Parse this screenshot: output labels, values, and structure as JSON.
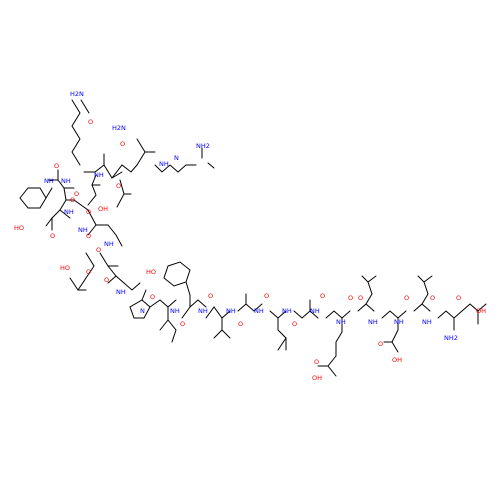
{
  "colors": {
    "background": "#ffffff",
    "bond": "#000000",
    "oxygen": "#ff0000",
    "nitrogen": "#0000ff"
  },
  "atom_labels": {
    "h2n_gln": "H2N",
    "o_gln_amide": "O",
    "h2n_c_term": "H2N",
    "o_c_term": "O",
    "nh_arg_1": "NH",
    "n_arg_2": "N",
    "nh2_arg": "NH2",
    "nh_leu": "NH",
    "nh_gln": "NH",
    "nh_phe": "NH",
    "o_phe": "O",
    "o_gln": "O",
    "o_leu": "O",
    "nh_asp1": "NH",
    "ho_asp1": "HO",
    "o_asp1": "O",
    "o_asp1_acid": "O",
    "nh_asp2": "NH",
    "o_asp2_acid": "O",
    "oh_asp2": "OH",
    "o_asp2": "O",
    "nh_asp3": "NH",
    "ho_asp3": "HO",
    "o_asp3_acid": "O",
    "o_asp3": "O",
    "nh_ala1": "NH",
    "o_ala1": "O",
    "ho_tyr": "HO",
    "n_pro": "N",
    "o_pro": "O",
    "nh_ile": "NH",
    "o_ile": "O",
    "nh_tyr": "NH",
    "o_tyr": "O",
    "nh_val": "NH",
    "o_val": "O",
    "nh_ala2": "NH",
    "o_ala2": "O",
    "nh_leu2": "NH",
    "o_leu2": "O",
    "nh_ala3": "NH",
    "o_ala3": "O",
    "nh_glu": "NH",
    "o_glu": "O",
    "o_glu_acid": "O",
    "oh_glu": "OH",
    "nh_leu3": "NH",
    "o_leu3": "O",
    "nh_asp4": "NH",
    "o_asp4": "O",
    "o_asp4_acid": "O",
    "oh_asp4": "OH",
    "nh_leu4": "NH",
    "o_leu4": "O",
    "o_asp5": "O",
    "oh_asp5": "OH",
    "nh2_n_term": "NH2"
  }
}
